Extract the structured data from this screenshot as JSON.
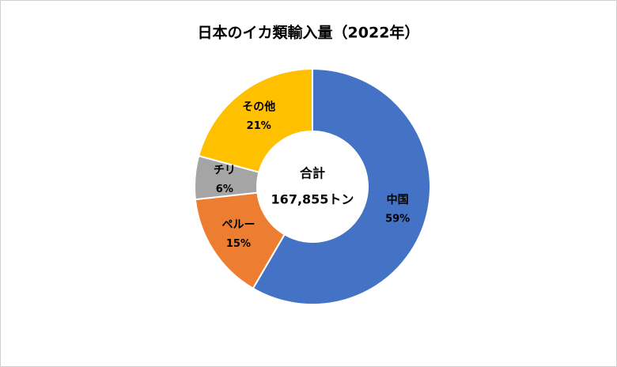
{
  "chart_data": {
    "type": "donut",
    "title": "日本のイカ類輸入量（2022年）",
    "center_label": "合計",
    "center_value": "167,855トン",
    "categories": [
      "中国",
      "ペルー",
      "チリ",
      "その他"
    ],
    "values": [
      59,
      15,
      6,
      21
    ],
    "value_labels": [
      "59%",
      "15%",
      "6%",
      "21%"
    ],
    "colors": [
      "#4472c4",
      "#ed7d31",
      "#a5a5a5",
      "#ffc000"
    ]
  }
}
